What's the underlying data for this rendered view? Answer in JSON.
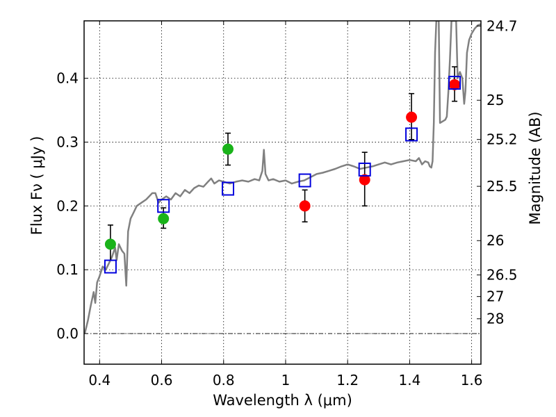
{
  "chart_data": {
    "type": "scatter",
    "xlabel": "Wavelength  λ (μm)",
    "ylabel": "Flux  Fν  ( μJy )",
    "y2label": "Magnitude (AB)",
    "xlim": [
      0.35,
      1.63
    ],
    "ylim": [
      -0.048,
      0.49
    ],
    "grid": true,
    "x_ticks": [
      0.4,
      0.6,
      0.8,
      1.0,
      1.2,
      1.4,
      1.6
    ],
    "x_tick_labels": [
      "0.4",
      "0.6",
      "0.8",
      "1",
      "1.2",
      "1.4",
      "1.6"
    ],
    "y_ticks": [
      0.0,
      0.1,
      0.2,
      0.3,
      0.4
    ],
    "y_tick_labels": [
      "0.0",
      "0.1",
      "0.2",
      "0.3",
      "0.4"
    ],
    "mag_ticks": [
      {
        "label": "24.7",
        "flux": 0.4819
      },
      {
        "label": "25",
        "flux": 0.3656
      },
      {
        "label": "25.2",
        "flux": 0.3041
      },
      {
        "label": "25.5",
        "flux": 0.2307
      },
      {
        "label": "26",
        "flux": 0.1456
      },
      {
        "label": "26.5",
        "flux": 0.0918
      },
      {
        "label": "27",
        "flux": 0.058
      },
      {
        "label": "28",
        "flux": 0.0231
      }
    ],
    "colors": {
      "green": "#1ab31a",
      "red": "#ff0000",
      "blue": "#0000dd",
      "model": "#808080",
      "errorbar": "#000000"
    },
    "series": [
      {
        "marker": "circle",
        "color": "green",
        "points": [
          {
            "x": 0.435,
            "y": 0.14,
            "err_low": 0.025,
            "err_high": 0.03
          },
          {
            "x": 0.606,
            "y": 0.18,
            "err_low": 0.015,
            "err_high": 0.017
          },
          {
            "x": 0.814,
            "y": 0.289,
            "err_low": 0.025,
            "err_high": 0.025
          }
        ]
      },
      {
        "marker": "circle",
        "color": "red",
        "points": [
          {
            "x": 1.062,
            "y": 0.2,
            "err_low": 0.025,
            "err_high": 0.025
          },
          {
            "x": 1.255,
            "y": 0.241,
            "err_low": 0.041,
            "err_high": 0.043
          },
          {
            "x": 1.406,
            "y": 0.339,
            "err_low": 0.035,
            "err_high": 0.037
          },
          {
            "x": 1.545,
            "y": 0.39,
            "err_low": 0.026,
            "err_high": 0.028
          }
        ]
      },
      {
        "marker": "square",
        "color": "blue",
        "points": [
          {
            "x": 0.435,
            "y": 0.105
          },
          {
            "x": 0.606,
            "y": 0.2
          },
          {
            "x": 0.814,
            "y": 0.227
          },
          {
            "x": 1.062,
            "y": 0.24
          },
          {
            "x": 1.255,
            "y": 0.257
          },
          {
            "x": 1.406,
            "y": 0.312
          },
          {
            "x": 1.545,
            "y": 0.393
          }
        ]
      }
    ],
    "model_curve": [
      [
        0.352,
        0.0
      ],
      [
        0.362,
        0.02
      ],
      [
        0.372,
        0.045
      ],
      [
        0.381,
        0.065
      ],
      [
        0.386,
        0.048
      ],
      [
        0.392,
        0.08
      ],
      [
        0.4,
        0.09
      ],
      [
        0.41,
        0.105
      ],
      [
        0.42,
        0.1
      ],
      [
        0.43,
        0.11
      ],
      [
        0.44,
        0.12
      ],
      [
        0.45,
        0.135
      ],
      [
        0.455,
        0.115
      ],
      [
        0.462,
        0.14
      ],
      [
        0.472,
        0.13
      ],
      [
        0.48,
        0.125
      ],
      [
        0.486,
        0.075
      ],
      [
        0.492,
        0.16
      ],
      [
        0.5,
        0.18
      ],
      [
        0.51,
        0.19
      ],
      [
        0.52,
        0.2
      ],
      [
        0.535,
        0.205
      ],
      [
        0.55,
        0.21
      ],
      [
        0.56,
        0.215
      ],
      [
        0.57,
        0.22
      ],
      [
        0.58,
        0.22
      ],
      [
        0.59,
        0.205
      ],
      [
        0.6,
        0.21
      ],
      [
        0.615,
        0.215
      ],
      [
        0.63,
        0.21
      ],
      [
        0.645,
        0.22
      ],
      [
        0.66,
        0.215
      ],
      [
        0.675,
        0.225
      ],
      [
        0.69,
        0.22
      ],
      [
        0.705,
        0.228
      ],
      [
        0.72,
        0.232
      ],
      [
        0.735,
        0.23
      ],
      [
        0.75,
        0.238
      ],
      [
        0.76,
        0.243
      ],
      [
        0.77,
        0.235
      ],
      [
        0.785,
        0.24
      ],
      [
        0.8,
        0.238
      ],
      [
        0.82,
        0.235
      ],
      [
        0.84,
        0.238
      ],
      [
        0.86,
        0.24
      ],
      [
        0.88,
        0.238
      ],
      [
        0.9,
        0.242
      ],
      [
        0.915,
        0.24
      ],
      [
        0.925,
        0.255
      ],
      [
        0.93,
        0.288
      ],
      [
        0.935,
        0.25
      ],
      [
        0.945,
        0.24
      ],
      [
        0.96,
        0.242
      ],
      [
        0.98,
        0.238
      ],
      [
        1.0,
        0.24
      ],
      [
        1.02,
        0.235
      ],
      [
        1.04,
        0.238
      ],
      [
        1.06,
        0.24
      ],
      [
        1.08,
        0.245
      ],
      [
        1.1,
        0.25
      ],
      [
        1.12,
        0.252
      ],
      [
        1.14,
        0.255
      ],
      [
        1.16,
        0.258
      ],
      [
        1.18,
        0.262
      ],
      [
        1.2,
        0.265
      ],
      [
        1.22,
        0.262
      ],
      [
        1.24,
        0.258
      ],
      [
        1.26,
        0.26
      ],
      [
        1.28,
        0.262
      ],
      [
        1.3,
        0.265
      ],
      [
        1.32,
        0.268
      ],
      [
        1.34,
        0.265
      ],
      [
        1.36,
        0.268
      ],
      [
        1.38,
        0.27
      ],
      [
        1.4,
        0.272
      ],
      [
        1.42,
        0.27
      ],
      [
        1.43,
        0.275
      ],
      [
        1.44,
        0.265
      ],
      [
        1.45,
        0.27
      ],
      [
        1.46,
        0.268
      ],
      [
        1.465,
        0.262
      ],
      [
        1.47,
        0.26
      ],
      [
        1.474,
        0.27
      ],
      [
        1.478,
        0.33
      ],
      [
        1.482,
        0.44
      ],
      [
        1.486,
        0.49
      ],
      [
        1.494,
        0.49
      ],
      [
        1.498,
        0.33
      ],
      [
        1.505,
        0.332
      ],
      [
        1.515,
        0.335
      ],
      [
        1.52,
        0.34
      ],
      [
        1.525,
        0.38
      ],
      [
        1.53,
        0.43
      ],
      [
        1.535,
        0.49
      ],
      [
        1.55,
        0.49
      ],
      [
        1.555,
        0.4
      ],
      [
        1.562,
        0.41
      ],
      [
        1.57,
        0.4
      ],
      [
        1.576,
        0.36
      ],
      [
        1.58,
        0.38
      ],
      [
        1.585,
        0.44
      ],
      [
        1.592,
        0.46
      ],
      [
        1.6,
        0.47
      ],
      [
        1.61,
        0.478
      ],
      [
        1.62,
        0.483
      ],
      [
        1.63,
        0.485
      ]
    ]
  }
}
